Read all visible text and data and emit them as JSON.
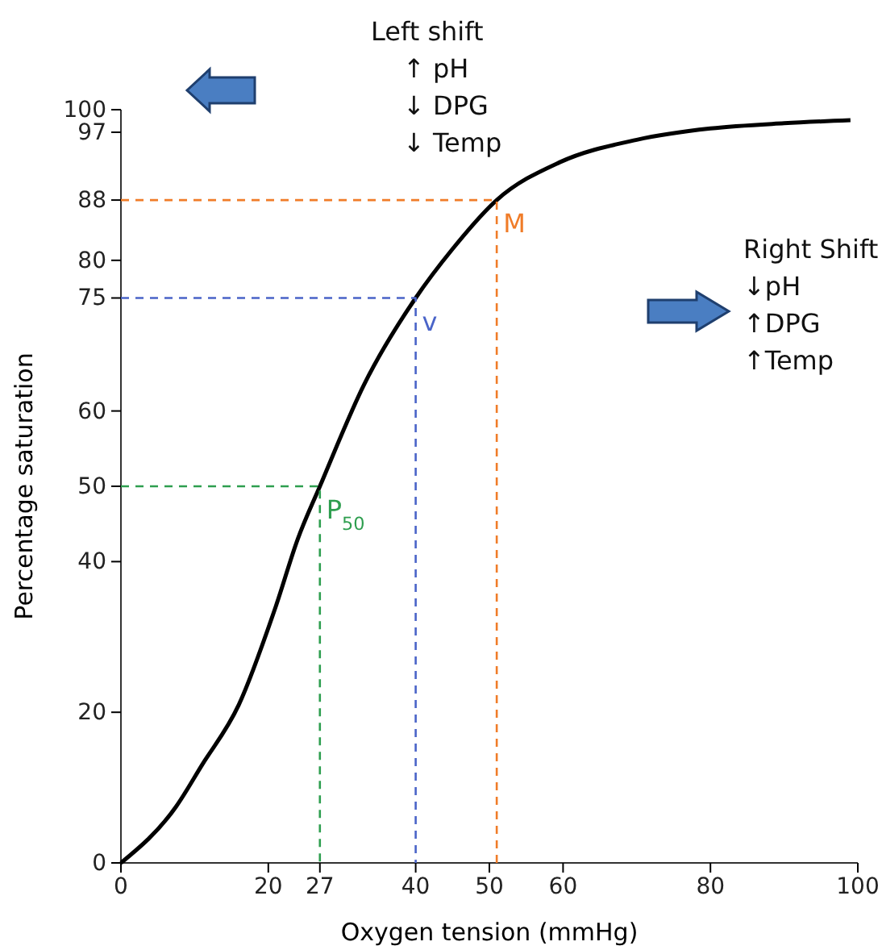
{
  "chart_data": {
    "type": "line",
    "xlabel": "Oxygen tension (mmHg)",
    "ylabel": "Percentage saturation",
    "xlim": [
      0,
      100
    ],
    "ylim": [
      0,
      100
    ],
    "xticks": [
      0,
      20,
      27,
      40,
      50,
      60,
      80,
      100
    ],
    "yticks": [
      0,
      20,
      40,
      50,
      60,
      75,
      80,
      88,
      97,
      100
    ],
    "line_style": "solid",
    "series": [
      {
        "color": "#000000",
        "x": [
          0,
          7.5,
          11,
          16,
          21,
          24,
          27,
          33,
          40,
          45,
          51,
          59.5,
          70,
          80,
          90,
          99
        ],
        "values": [
          0,
          7.5,
          13,
          21,
          34,
          43,
          50,
          63.5,
          75,
          81.5,
          88,
          93,
          96,
          97.5,
          98.2,
          98.6
        ]
      },
      {
        "color": "#2e9e4f",
        "line_style": "dashed",
        "x": [
          0,
          27,
          27
        ],
        "values": [
          50,
          50,
          0
        ]
      },
      {
        "color": "#4a64c8",
        "line_style": "dashed",
        "x": [
          0,
          40,
          40
        ],
        "values": [
          75,
          75,
          0
        ]
      },
      {
        "color": "#f07c28",
        "line_style": "dashed",
        "x": [
          0,
          51,
          51
        ],
        "values": [
          88,
          88,
          0
        ]
      }
    ],
    "annotations": [
      "Left shift\n↑ pH\n↓ DPG\n↓ Temp",
      "Right Shift\n↓pH\n↑DPG\n↑Temp",
      {
        "text": "P$_{50}$",
        "x": 27,
        "y": 50
      },
      {
        "text": "v",
        "x": 40,
        "y": 75
      },
      {
        "text": "M",
        "x": 51,
        "y": 88
      }
    ]
  }
}
